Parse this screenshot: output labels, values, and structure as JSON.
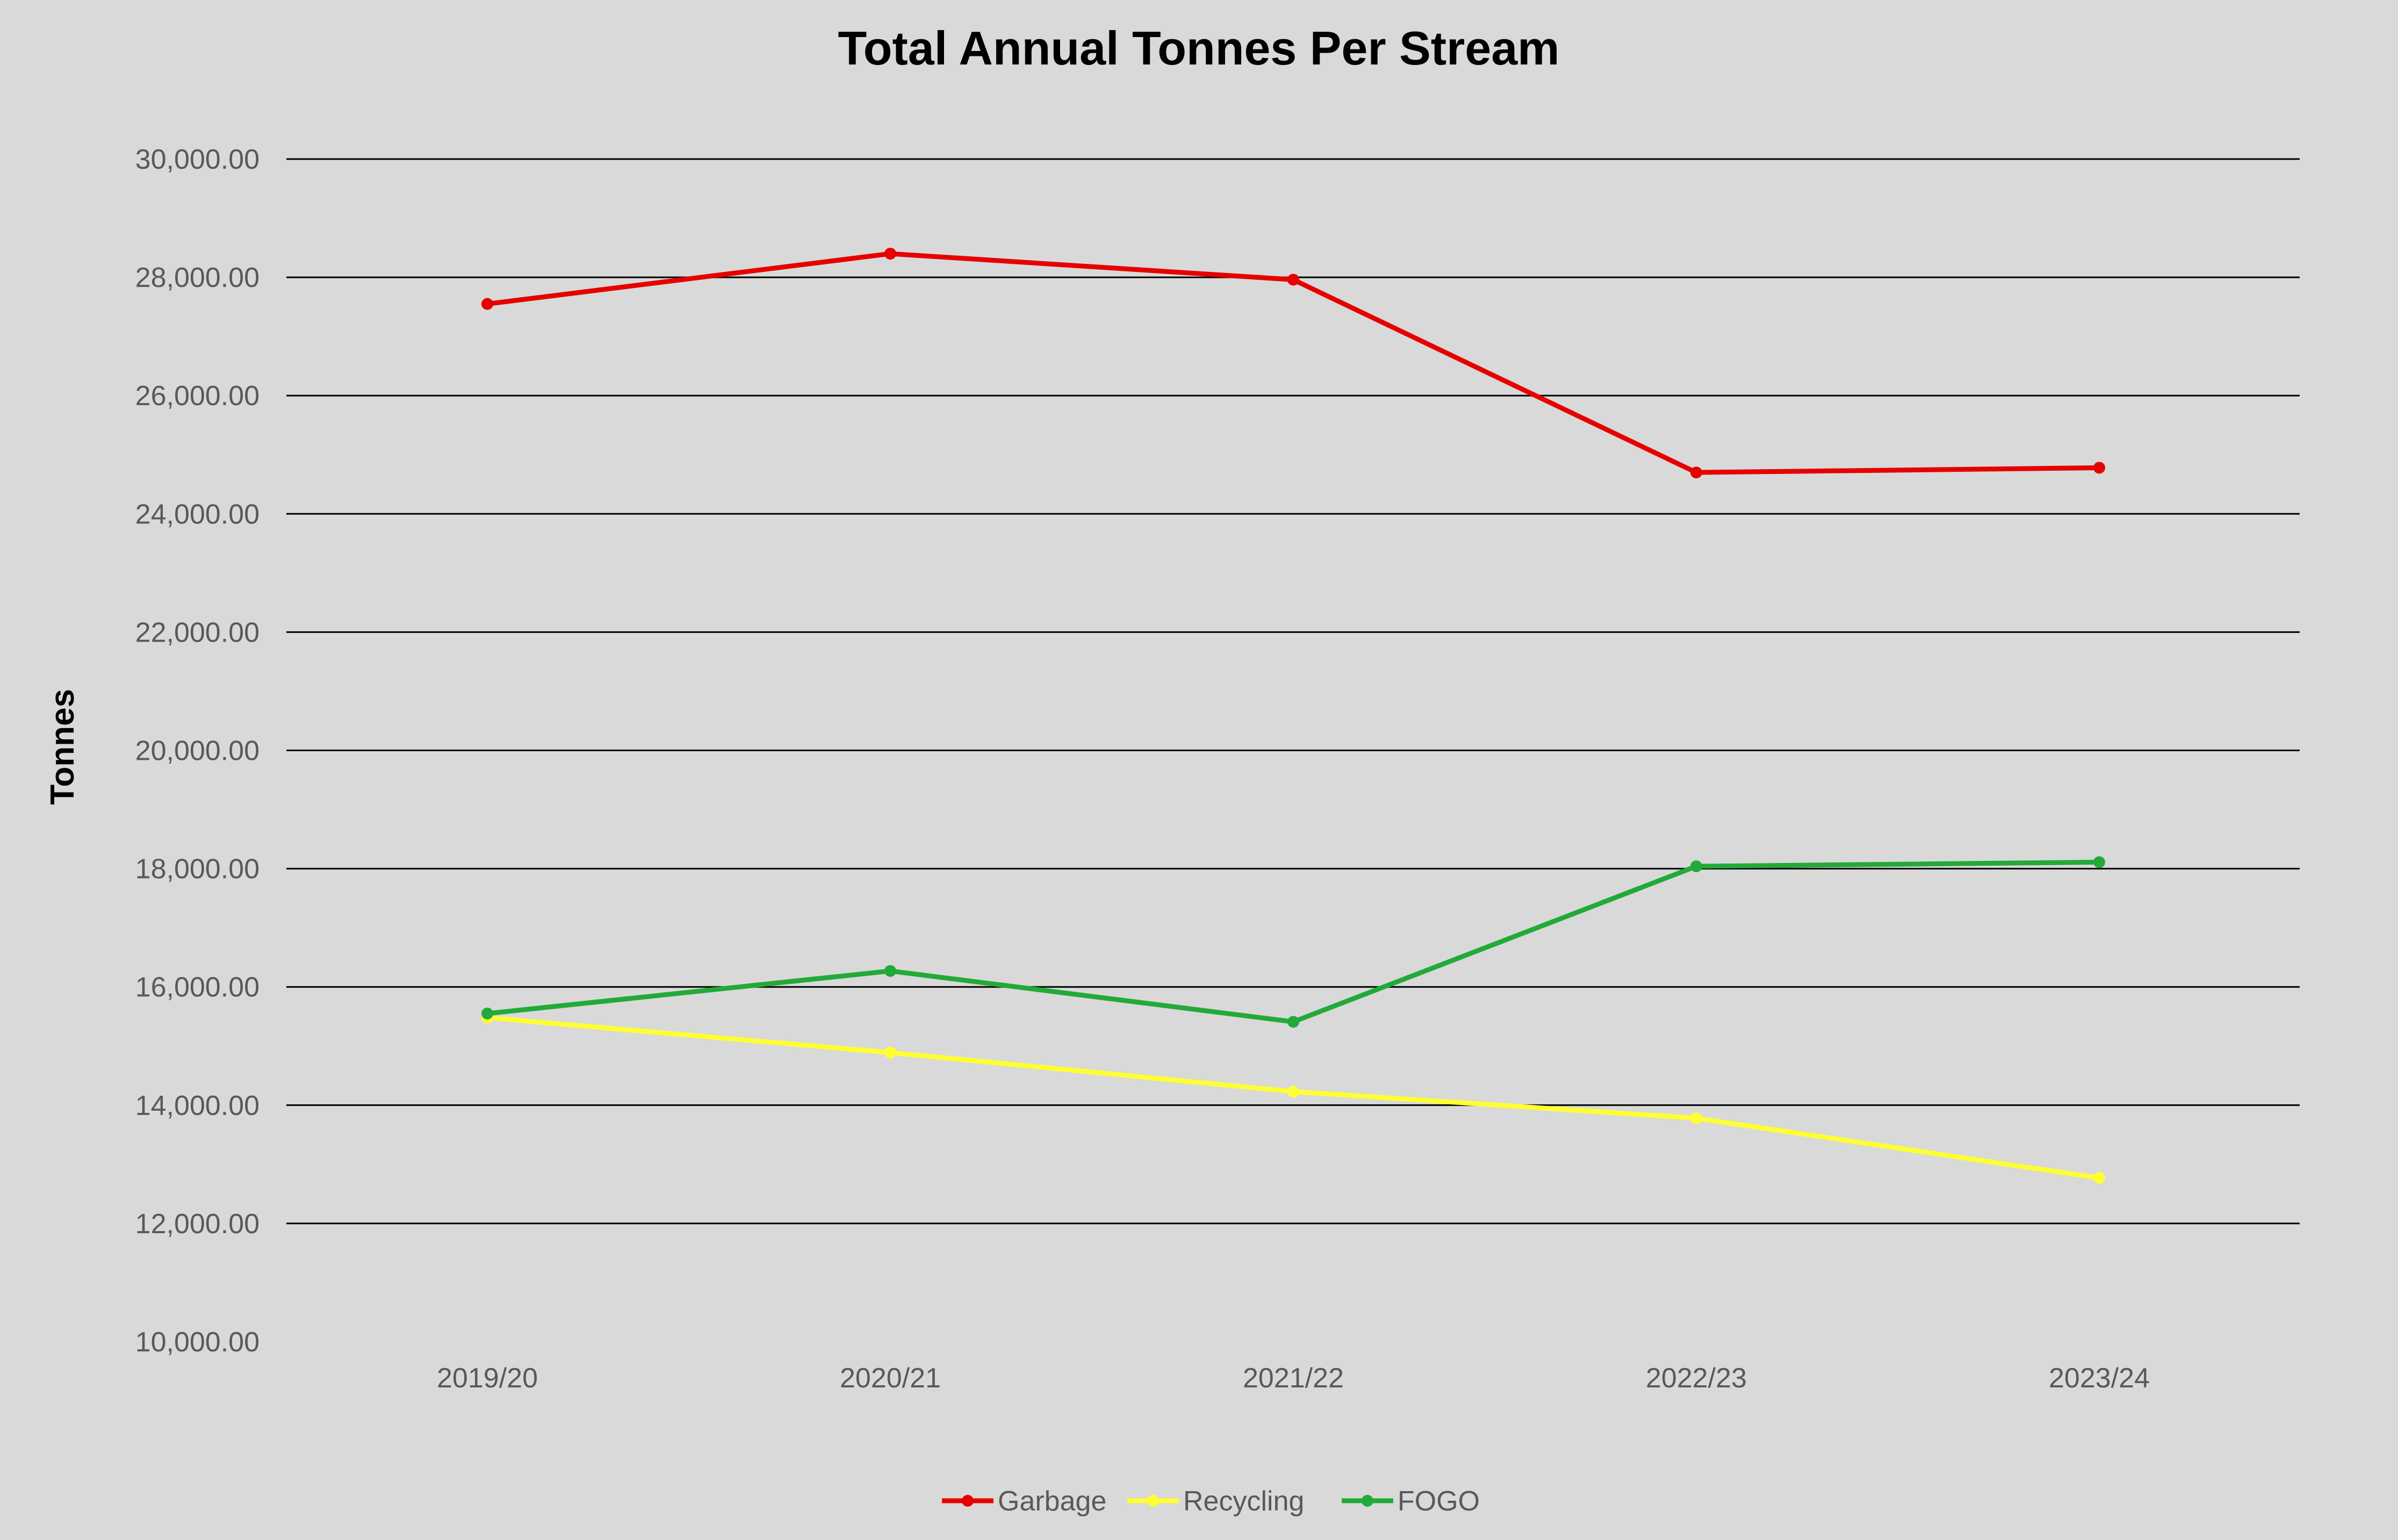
{
  "chart_data": {
    "type": "line",
    "title": "Total Annual Tonnes Per Stream",
    "xlabel": "",
    "ylabel": "Tonnes",
    "categories": [
      "2019/20",
      "2020/21",
      "2021/22",
      "2022/23",
      "2023/24"
    ],
    "ylim": [
      10000,
      30000
    ],
    "yticks": [
      10000,
      12000,
      14000,
      16000,
      18000,
      20000,
      22000,
      24000,
      26000,
      28000,
      30000
    ],
    "ytick_labels": [
      "10,000.00",
      "12,000.00",
      "14,000.00",
      "16,000.00",
      "18,000.00",
      "20,000.00",
      "22,000.00",
      "24,000.00",
      "26,000.00",
      "28,000.00",
      "30,000.00"
    ],
    "grid": true,
    "legend_position": "bottom",
    "series": [
      {
        "name": "Garbage",
        "color": "#e60000",
        "values": [
          27550,
          28400,
          27960,
          24700,
          24780
        ]
      },
      {
        "name": "Recycling",
        "color": "#ffff33",
        "values": [
          15480,
          14890,
          14230,
          13780,
          12770
        ]
      },
      {
        "name": "FOGO",
        "color": "#22aa38",
        "values": [
          15550,
          16270,
          15410,
          18040,
          18110
        ]
      }
    ]
  }
}
